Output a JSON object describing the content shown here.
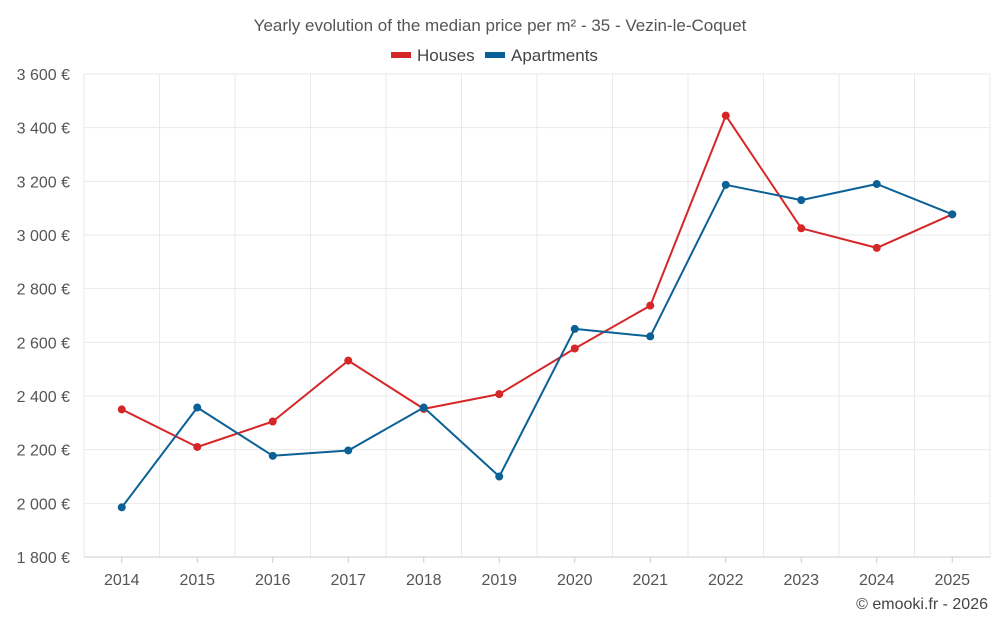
{
  "chart_data": {
    "type": "line",
    "title": "Yearly evolution of the median price per m² - 35 - Vezin-le-Coquet",
    "xlabel": "",
    "ylabel": "",
    "categories": [
      "2014",
      "2015",
      "2016",
      "2017",
      "2018",
      "2019",
      "2020",
      "2021",
      "2022",
      "2023",
      "2024",
      "2025"
    ],
    "ylim": [
      1800,
      3600
    ],
    "yticks": [
      1800,
      2000,
      2200,
      2400,
      2600,
      2800,
      3000,
      3200,
      3400,
      3600
    ],
    "ytick_labels": [
      "1 800 €",
      "2 000 €",
      "2 200 €",
      "2 400 €",
      "2 600 €",
      "2 800 €",
      "3 000 €",
      "3 200 €",
      "3 400 €",
      "3 600 €"
    ],
    "grid": true,
    "legend_position": "top-center",
    "series": [
      {
        "name": "Houses",
        "color": "#d62728",
        "values": [
          2350,
          2210,
          2305,
          2532,
          2352,
          2407,
          2577,
          2737,
          3445,
          3025,
          2952,
          3077
        ]
      },
      {
        "name": "Apartments",
        "color": "#0b6196",
        "values": [
          1985,
          2357,
          2177,
          2197,
          2357,
          2100,
          2650,
          2622,
          3187,
          3130,
          3190,
          3077
        ]
      }
    ],
    "credit": "© emooki.fr - 2026"
  }
}
